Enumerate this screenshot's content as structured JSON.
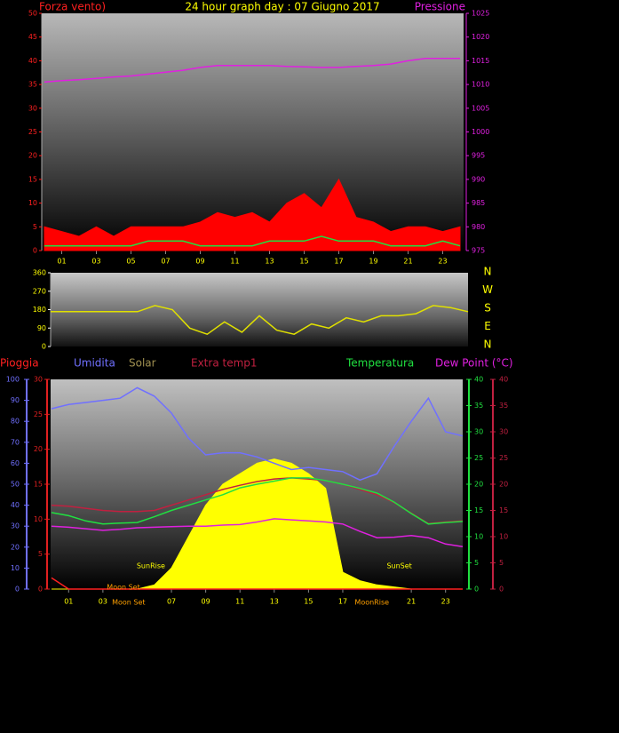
{
  "chart_data": [
    {
      "type": "line",
      "title": "24 hour graph day : 07 Giugno 2017",
      "y_label": "Forza vento)",
      "y2_label": "Pressione",
      "x": [
        0,
        1,
        2,
        3,
        4,
        5,
        6,
        7,
        8,
        9,
        10,
        11,
        12,
        13,
        14,
        15,
        16,
        17,
        18,
        19,
        20,
        21,
        22,
        23,
        24
      ],
      "xlim": [
        0,
        24
      ],
      "xticks": [
        {
          "value": 1,
          "label": "01"
        },
        {
          "value": 3,
          "label": "03"
        },
        {
          "value": 5,
          "label": "05"
        },
        {
          "value": 7,
          "label": "07"
        },
        {
          "value": 9,
          "label": "09"
        },
        {
          "value": 11,
          "label": "11"
        },
        {
          "value": 13,
          "label": "13"
        },
        {
          "value": 15,
          "label": "15"
        },
        {
          "value": 17,
          "label": "17"
        },
        {
          "value": 19,
          "label": "19"
        },
        {
          "value": 21,
          "label": "21"
        },
        {
          "value": 23,
          "label": "23"
        }
      ],
      "ylim": [
        0,
        50
      ],
      "yticks": [
        0,
        5,
        10,
        15,
        20,
        25,
        30,
        35,
        40,
        45,
        50
      ],
      "y_color": "#ff2020",
      "y2lim": [
        975,
        1025
      ],
      "y2ticks": [
        975,
        980,
        985,
        990,
        995,
        1000,
        1005,
        1010,
        1015,
        1020,
        1025
      ],
      "y2_color": "#e020e0",
      "series": [
        {
          "color": "#ff0000",
          "fill": true,
          "values": [
            5,
            4,
            3,
            5,
            3,
            5,
            5,
            5,
            5,
            6,
            8,
            7,
            8,
            6,
            10,
            12,
            9,
            15,
            7,
            6,
            4,
            5,
            5,
            4,
            5
          ]
        },
        {
          "color": "#20e040",
          "values": [
            1,
            1,
            1,
            1,
            1,
            1,
            2,
            2,
            2,
            1,
            1,
            1,
            1,
            2,
            2,
            2,
            3,
            2,
            2,
            2,
            1,
            1,
            1,
            2,
            1
          ]
        },
        {
          "color": "#e020e0",
          "axis": "y2",
          "values": [
            1010.5,
            1010.8,
            1011,
            1011.3,
            1011.6,
            1011.8,
            1012.2,
            1012.6,
            1013,
            1013.6,
            1014,
            1014,
            1014,
            1014,
            1013.8,
            1013.7,
            1013.6,
            1013.6,
            1013.8,
            1014,
            1014.3,
            1015,
            1015.5,
            1015.5,
            1015.5
          ]
        }
      ]
    },
    {
      "type": "line",
      "x": [
        0,
        1,
        2,
        3,
        4,
        5,
        6,
        7,
        8,
        9,
        10,
        11,
        12,
        13,
        14,
        15,
        16,
        17,
        18,
        19,
        20,
        21,
        22,
        23,
        24
      ],
      "xlim": [
        0,
        24
      ],
      "ylim": [
        0,
        360
      ],
      "yticks": [
        0,
        90,
        180,
        270,
        360
      ],
      "compass_labels": [
        "N",
        "W",
        "S",
        "E",
        "N"
      ],
      "series": [
        {
          "color": "#e0e000",
          "values": [
            170,
            170,
            170,
            170,
            170,
            170,
            200,
            180,
            90,
            60,
            120,
            70,
            150,
            80,
            60,
            110,
            90,
            140,
            120,
            150,
            150,
            160,
            200,
            190,
            170
          ]
        }
      ]
    },
    {
      "type": "line",
      "x": [
        0,
        1,
        2,
        3,
        4,
        5,
        6,
        7,
        8,
        9,
        10,
        11,
        12,
        13,
        14,
        15,
        16,
        17,
        18,
        19,
        20,
        21,
        22,
        23,
        24
      ],
      "xlim": [
        0,
        24
      ],
      "xticks": [
        {
          "value": 1,
          "label": "01"
        },
        {
          "value": 3,
          "label": "03"
        },
        {
          "value": 7,
          "label": "07"
        },
        {
          "value": 9,
          "label": "09"
        },
        {
          "value": 11,
          "label": "11"
        },
        {
          "value": 13,
          "label": "13"
        },
        {
          "value": 15,
          "label": "15"
        },
        {
          "value": 17,
          "label": "17"
        },
        {
          "value": 21,
          "label": "21"
        },
        {
          "value": 23,
          "label": "23"
        }
      ],
      "axes": [
        {
          "lim": [
            0,
            100
          ],
          "ticks": [
            0,
            10,
            20,
            30,
            40,
            50,
            60,
            70,
            80,
            90,
            100
          ],
          "color": "#7070ff"
        },
        {
          "lim": [
            0,
            30
          ],
          "ticks": [
            0,
            5,
            10,
            15,
            20,
            25,
            30
          ],
          "color": "#e02020"
        },
        {
          "lim": [
            0,
            40
          ],
          "ticks": [
            0,
            5,
            10,
            15,
            20,
            25,
            30,
            35,
            40
          ],
          "color": "#20e040"
        },
        {
          "lim": [
            0,
            40
          ],
          "ticks": [
            0,
            5,
            10,
            15,
            20,
            25,
            30,
            35,
            40
          ],
          "color": "#c02040"
        }
      ],
      "series": [
        {
          "name": "Pioggia",
          "color": "#ff2020",
          "axis": 1,
          "values": [
            1.6,
            0,
            0,
            0,
            0,
            0,
            0,
            0,
            0,
            0,
            0,
            0,
            0,
            0,
            0,
            0,
            0,
            0,
            0,
            0,
            0,
            0,
            0,
            0,
            0
          ]
        },
        {
          "name": "Umidita",
          "color": "#7070ff",
          "axis": 0,
          "values": [
            86,
            88,
            89,
            90,
            91,
            96,
            92,
            84,
            72,
            64,
            65,
            65,
            63,
            60,
            57,
            58,
            57,
            56,
            52,
            55,
            68,
            80,
            91,
            75,
            73
          ]
        },
        {
          "name": "Solar",
          "color": "#ffff00",
          "legend_color": "#a09050",
          "fill": true,
          "axis": 0,
          "values": [
            0,
            0,
            0,
            0,
            0,
            0,
            2,
            10,
            25,
            40,
            50,
            55,
            60,
            62,
            60,
            55,
            48,
            8,
            4,
            2,
            1,
            0,
            0,
            0,
            0
          ]
        },
        {
          "name": "Extra temp1",
          "color": "#c02040",
          "axis": 3,
          "values": [
            16,
            15.8,
            15.4,
            15,
            14.8,
            14.8,
            15,
            16,
            17,
            18,
            19,
            19.8,
            20.5,
            21,
            21.2,
            21,
            20.7,
            20,
            19,
            18,
            16.5,
            14.5,
            12.5,
            12.8,
            13
          ]
        },
        {
          "name": "Temperatura",
          "color": "#20e040",
          "axis": 2,
          "values": [
            14.6,
            14,
            13,
            12.4,
            12.6,
            12.7,
            13.8,
            15,
            16,
            17,
            18,
            19.3,
            20,
            20.6,
            21.2,
            21.2,
            20.7,
            20,
            19.2,
            18.3,
            16.6,
            14.4,
            12.4,
            12.7,
            12.9
          ]
        },
        {
          "name": "Dew Point (°C)",
          "color": "#e020e0",
          "axis": 3,
          "values": [
            12,
            11.8,
            11.5,
            11.2,
            11.4,
            11.7,
            11.8,
            11.9,
            12,
            12,
            12.2,
            12.3,
            12.8,
            13.4,
            13.2,
            13,
            12.8,
            12.4,
            11,
            9.8,
            9.9,
            10.2,
            9.8,
            8.6,
            8.1
          ]
        }
      ],
      "annotations": [
        {
          "text": "SunRise",
          "x": 5.8
        },
        {
          "text": "SunSet",
          "x": 20.3
        },
        {
          "text": "Moon Set",
          "x": 4.2
        },
        {
          "text": "Moon Set",
          "x": 4.5
        },
        {
          "text": "MoonRise",
          "x": 18.7
        }
      ]
    }
  ]
}
